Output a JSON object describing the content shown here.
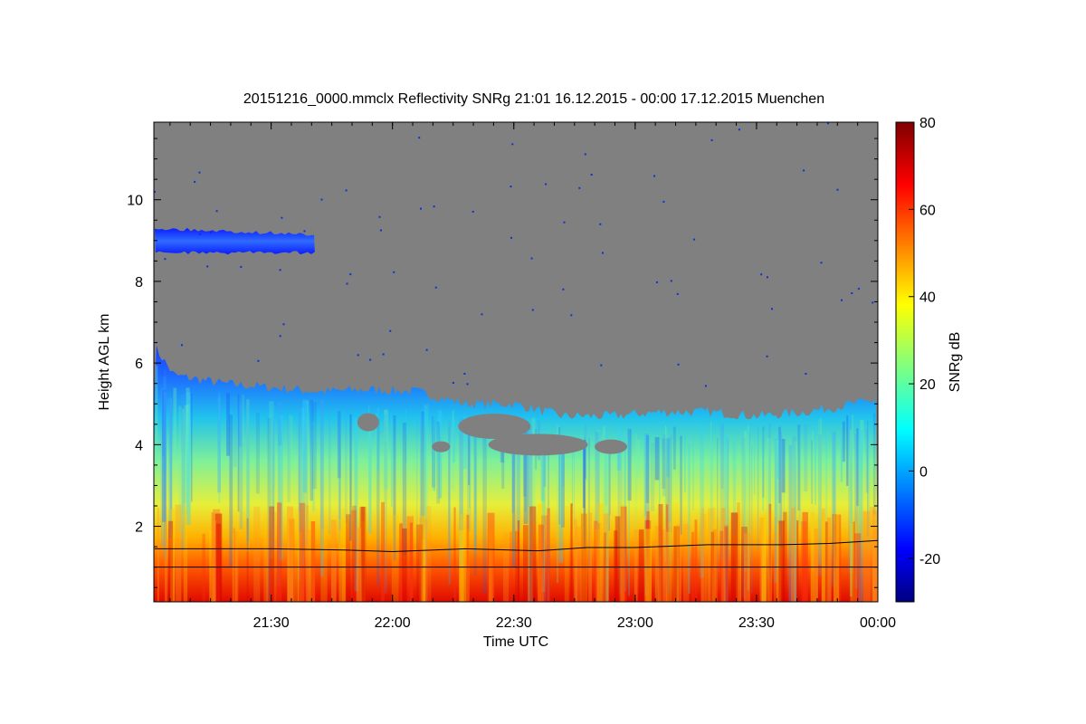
{
  "chart_data": {
    "type": "heatmap",
    "title": "20151216_0000.mmclx Reflectivity SNRg   21:01 16.12.2015 - 00:00 17.12.2015 Muenchen",
    "xlabel": "Time UTC",
    "ylabel": "Height AGL km",
    "x_range_hours": [
      21.0167,
      24.0
    ],
    "x_ticks": [
      {
        "label": "21:30",
        "value": 21.5
      },
      {
        "label": "22:00",
        "value": 22.0
      },
      {
        "label": "22:30",
        "value": 22.5
      },
      {
        "label": "23:00",
        "value": 23.0
      },
      {
        "label": "23:30",
        "value": 23.5
      },
      {
        "label": "00:00",
        "value": 24.0
      }
    ],
    "y_range": [
      0.15,
      11.9
    ],
    "y_ticks": [
      {
        "label": "2",
        "value": 2
      },
      {
        "label": "4",
        "value": 4
      },
      {
        "label": "6",
        "value": 6
      },
      {
        "label": "8",
        "value": 8
      },
      {
        "label": "10",
        "value": 10
      }
    ],
    "colorbar": {
      "label": "SNRg dB",
      "range": [
        -30,
        80
      ],
      "ticks": [
        {
          "label": "-20",
          "value": -20
        },
        {
          "label": "0",
          "value": 0
        },
        {
          "label": "20",
          "value": 20
        },
        {
          "label": "40",
          "value": 40
        },
        {
          "label": "60",
          "value": 60
        },
        {
          "label": "80",
          "value": 80
        }
      ]
    },
    "background_color": "#808080",
    "cloud_top_km": [
      [
        21.02,
        6.4
      ],
      [
        21.1,
        5.7
      ],
      [
        21.3,
        5.5
      ],
      [
        21.5,
        5.4
      ],
      [
        21.7,
        5.3
      ],
      [
        21.9,
        5.35
      ],
      [
        22.1,
        5.3
      ],
      [
        22.3,
        5.0
      ],
      [
        22.5,
        5.0
      ],
      [
        22.7,
        4.7
      ],
      [
        22.9,
        4.7
      ],
      [
        23.1,
        4.8
      ],
      [
        23.3,
        4.8
      ],
      [
        23.5,
        4.7
      ],
      [
        23.7,
        4.8
      ],
      [
        23.9,
        5.0
      ],
      [
        24.0,
        5.1
      ]
    ],
    "upper_cloud_layer": {
      "x_start": 21.02,
      "x_end": 21.68,
      "base_km": 8.7,
      "top_km": 9.3
    },
    "mixing_layer_km": [
      [
        21.02,
        1.45
      ],
      [
        21.5,
        1.45
      ],
      [
        21.8,
        1.42
      ],
      [
        22.0,
        1.38
      ],
      [
        22.3,
        1.45
      ],
      [
        22.6,
        1.4
      ],
      [
        22.8,
        1.48
      ],
      [
        23.0,
        1.48
      ],
      [
        23.3,
        1.55
      ],
      [
        23.6,
        1.55
      ],
      [
        23.8,
        1.58
      ],
      [
        24.0,
        1.65
      ]
    ],
    "reference_line_km": 1.0
  }
}
